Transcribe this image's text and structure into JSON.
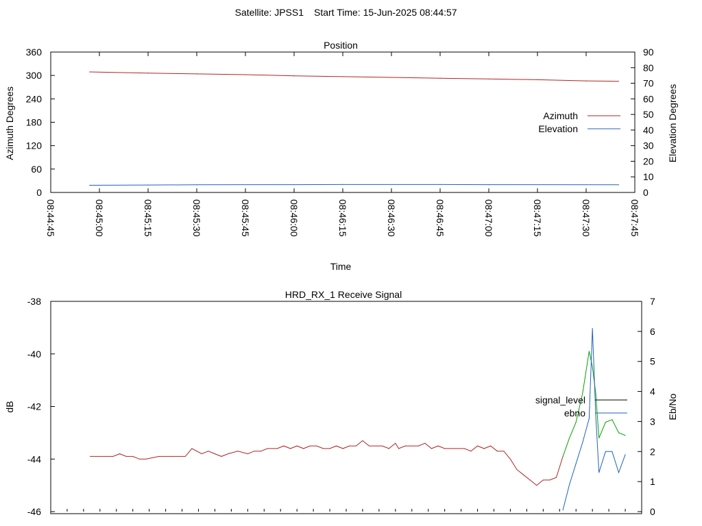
{
  "header": {
    "satellite": "Satellite: JPSS1",
    "start_time": "Start Time: 15-Jun-2025 08:44:57"
  },
  "chart_data": [
    {
      "type": "line",
      "title": "Position",
      "xlabel": "Time",
      "ylabel": "Azimuth Degrees",
      "y2label": "Elevation Degrees",
      "x_start": "08:44:45",
      "x_end": "08:47:45",
      "x_ticks": [
        "08:44:45",
        "08:45:00",
        "08:45:15",
        "08:45:30",
        "08:45:45",
        "08:46:00",
        "08:46:15",
        "08:46:30",
        "08:46:45",
        "08:47:00",
        "08:47:15",
        "08:47:30",
        "08:47:45"
      ],
      "ylim": [
        0,
        360
      ],
      "y_ticks": [
        "0",
        "60",
        "120",
        "180",
        "240",
        "300",
        "360"
      ],
      "y2lim": [
        0,
        90
      ],
      "y2_ticks": [
        "0",
        "10",
        "20",
        "30",
        "40",
        "50",
        "60",
        "70",
        "80",
        "90"
      ],
      "legend_position": "right",
      "series": [
        {
          "name": "Azimuth",
          "color": "#b22222",
          "axis": "left",
          "x": [
            "08:44:57",
            "08:45:15",
            "08:45:30",
            "08:45:45",
            "08:46:00",
            "08:46:15",
            "08:46:30",
            "08:46:45",
            "08:47:00",
            "08:47:15",
            "08:47:30",
            "08:47:40"
          ],
          "values": [
            309,
            306,
            304,
            302,
            299,
            297,
            295,
            293,
            291,
            289,
            286,
            285
          ]
        },
        {
          "name": "Elevation",
          "color": "#1f5fbf",
          "axis": "right",
          "x": [
            "08:44:57",
            "08:45:15",
            "08:45:30",
            "08:46:00",
            "08:46:15",
            "08:46:45",
            "08:47:00",
            "08:47:40"
          ],
          "values": [
            4.6,
            4.8,
            4.9,
            5.0,
            5.1,
            5.1,
            5.0,
            4.9
          ]
        }
      ]
    },
    {
      "type": "line",
      "title": "HRD_RX_1 Receive Signal",
      "ylabel": "dB",
      "y2label": "Eb/No",
      "x_start": "08:44:45",
      "x_end": "08:47:45",
      "ylim": [
        -46,
        -38
      ],
      "y_ticks": [
        "-46",
        "-44",
        "-42",
        "-40",
        "-38"
      ],
      "y2lim": [
        0,
        7
      ],
      "y2_ticks": [
        "0",
        "1",
        "2",
        "3",
        "4",
        "5",
        "6",
        "7"
      ],
      "legend_position": "right",
      "series": [
        {
          "name": "signal_level",
          "color": "#b22222",
          "alt_color": "#00a000",
          "axis": "left",
          "x": [
            "08:44:57",
            "08:45:02",
            "08:45:04",
            "08:45:06",
            "08:45:08",
            "08:45:10",
            "08:45:12",
            "08:45:14",
            "08:45:18",
            "08:45:22",
            "08:45:24",
            "08:45:26",
            "08:45:28",
            "08:45:31",
            "08:45:33",
            "08:45:35",
            "08:45:37",
            "08:45:39",
            "08:45:42",
            "08:45:45",
            "08:45:47",
            "08:45:49",
            "08:45:51",
            "08:45:54",
            "08:45:56",
            "08:45:58",
            "08:46:00",
            "08:46:02",
            "08:46:04",
            "08:46:06",
            "08:46:08",
            "08:46:10",
            "08:46:12",
            "08:46:14",
            "08:46:16",
            "08:46:18",
            "08:46:20",
            "08:46:22",
            "08:46:24",
            "08:46:26",
            "08:46:28",
            "08:46:30",
            "08:46:31",
            "08:46:33",
            "08:46:35",
            "08:46:37",
            "08:46:39",
            "08:46:41",
            "08:46:43",
            "08:46:45",
            "08:46:47",
            "08:46:49",
            "08:46:51",
            "08:46:53",
            "08:46:55",
            "08:46:57",
            "08:46:59",
            "08:47:01",
            "08:47:03",
            "08:47:05",
            "08:47:07",
            "08:47:09",
            "08:47:11",
            "08:47:13",
            "08:47:15",
            "08:47:17",
            "08:47:19",
            "08:47:21",
            "08:47:23",
            "08:47:25",
            "08:47:27",
            "08:47:29",
            "08:47:30",
            "08:47:31",
            "08:47:32",
            "08:47:34",
            "08:47:36",
            "08:47:38",
            "08:47:40"
          ],
          "values": [
            -43.9,
            -43.9,
            -43.9,
            -43.8,
            -43.9,
            -43.9,
            -44.0,
            -44.0,
            -43.9,
            -43.9,
            -43.9,
            -43.9,
            -43.6,
            -43.8,
            -43.7,
            -43.8,
            -43.9,
            -43.8,
            -43.7,
            -43.8,
            -43.7,
            -43.7,
            -43.6,
            -43.6,
            -43.5,
            -43.6,
            -43.5,
            -43.6,
            -43.5,
            -43.5,
            -43.6,
            -43.6,
            -43.5,
            -43.6,
            -43.5,
            -43.5,
            -43.3,
            -43.5,
            -43.5,
            -43.5,
            -43.6,
            -43.4,
            -43.6,
            -43.5,
            -43.5,
            -43.5,
            -43.4,
            -43.6,
            -43.5,
            -43.6,
            -43.6,
            -43.6,
            -43.6,
            -43.7,
            -43.5,
            -43.6,
            -43.5,
            -43.7,
            -43.7,
            -44.0,
            -44.4,
            -44.6,
            -44.8,
            -45.0,
            -44.8,
            -44.8,
            -44.7,
            -43.9,
            -43.2,
            -42.6,
            -41.5,
            -39.9,
            -40.5,
            -41.5,
            -43.2,
            -42.6,
            -42.5,
            -43.0,
            -43.1
          ]
        },
        {
          "name": "ebno",
          "color": "#1f5fbf",
          "axis": "right",
          "x": [
            "08:47:21",
            "08:47:23",
            "08:47:25",
            "08:47:27",
            "08:47:29",
            "08:47:30",
            "08:47:31",
            "08:47:32",
            "08:47:34",
            "08:47:36",
            "08:47:38",
            "08:47:40"
          ],
          "values": [
            0.05,
            0.9,
            1.6,
            2.3,
            3.1,
            6.1,
            3.2,
            1.3,
            2.0,
            2.0,
            1.3,
            1.9
          ]
        }
      ]
    }
  ]
}
